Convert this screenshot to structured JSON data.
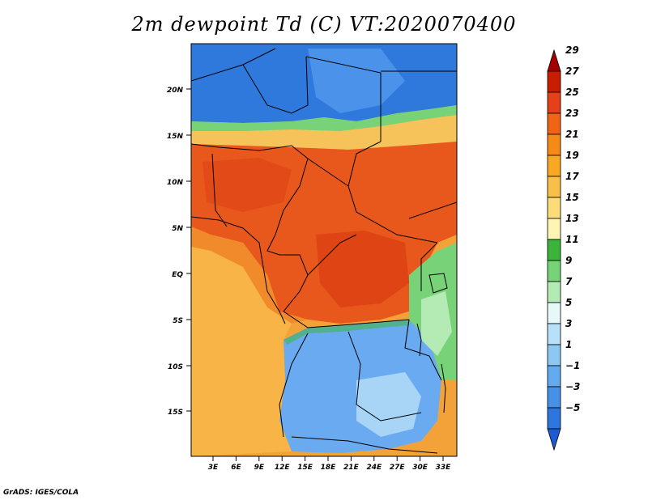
{
  "title": "2m dewpoint Td (C) VT:2020070400",
  "footer": "GrADS: IGES/COLA",
  "axes": {
    "lat_labels": [
      "20N",
      "15N",
      "10N",
      "5N",
      "EQ",
      "5S",
      "10S",
      "15S"
    ],
    "lon_labels": [
      "3E",
      "6E",
      "9E",
      "12E",
      "15E",
      "18E",
      "21E",
      "24E",
      "27E",
      "30E",
      "33E"
    ]
  },
  "colorbar": {
    "labels": [
      "29",
      "27",
      "25",
      "23",
      "21",
      "19",
      "17",
      "15",
      "13",
      "11",
      "9",
      "7",
      "5",
      "3",
      "1",
      "−1",
      "−3",
      "−5"
    ],
    "colors": [
      "#a50000",
      "#c81e00",
      "#e6401a",
      "#f06414",
      "#f58a14",
      "#f8a823",
      "#f8c048",
      "#fbdc78",
      "#fef5b4",
      "#3cb43c",
      "#78d278",
      "#b4eab4",
      "#e6f8f8",
      "#b8e0f8",
      "#8cc8f2",
      "#64aaee",
      "#4690e6",
      "#2c76de",
      "#1e5ad2"
    ]
  },
  "map": {
    "region": "Central Africa",
    "field_colors": {
      "sahara": "#2f78dc",
      "sahel": "#f0c050",
      "central": "#e8581c",
      "coast": "#f3a23a",
      "south": "#6aaaf0",
      "east_highlands": "#78d278"
    }
  }
}
